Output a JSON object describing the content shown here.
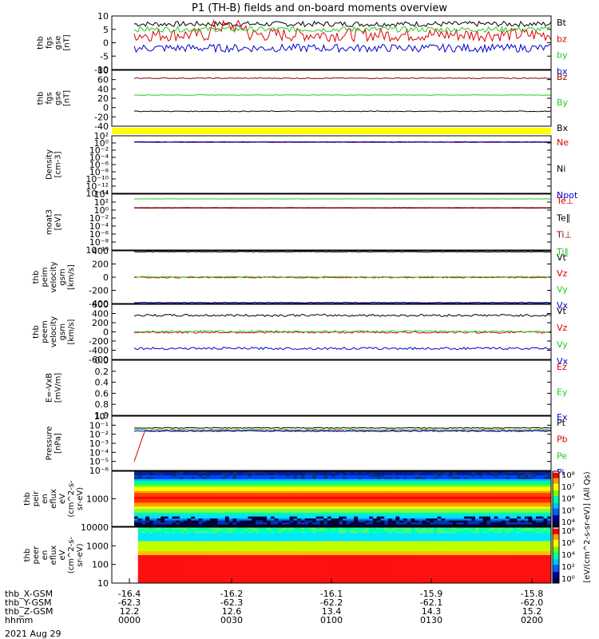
{
  "title": "P1  (TH-B) fields and on-board moments overview",
  "date_label": "2021 Aug 29",
  "colors": {
    "black": "#000000",
    "red": "#dd0000",
    "green": "#22cc22",
    "blue": "#0000cc",
    "darkred": "#880000",
    "yellow": "#ffff00",
    "teal": "#006060"
  },
  "chart_data": [
    {
      "type": "line",
      "ylabel": [
        "thb",
        "fgs",
        "gse",
        "[nT]"
      ],
      "ylim": [
        -10,
        10
      ],
      "ticks": [
        10,
        5,
        0,
        -5,
        -10
      ],
      "series": [
        {
          "name": "Bt",
          "color": "black",
          "base": 7,
          "noise": 1.0
        },
        {
          "name": "bz",
          "color": "red",
          "base": 3,
          "noise": 2.5
        },
        {
          "name": "by",
          "color": "green",
          "base": 5,
          "noise": 1.0
        },
        {
          "name": "bx",
          "color": "blue",
          "base": -2,
          "noise": 1.5
        }
      ]
    },
    {
      "type": "line",
      "ylabel": [
        "thb",
        "fgs",
        "gse",
        "[nT]"
      ],
      "ylim": [
        -40,
        80
      ],
      "ticks": [
        80,
        60,
        40,
        20,
        0,
        -20,
        -40
      ],
      "series": [
        {
          "name": "Bz",
          "color": "darkred",
          "base": 63,
          "noise": 1.0
        },
        {
          "name": "By",
          "color": "green",
          "base": 27,
          "noise": 0.6
        },
        {
          "name": "Bx",
          "color": "black",
          "base": -8,
          "noise": 0.8
        }
      ]
    },
    {
      "type": "line",
      "ylabel": [
        "Density",
        "[cm-3]"
      ],
      "ylim": [
        -14,
        2
      ],
      "log": true,
      "ticks": [
        "10²",
        "10⁰",
        "10⁻²",
        "10⁻⁴",
        "10⁻⁶",
        "10⁻⁸",
        "10⁻¹⁰",
        "10⁻¹²",
        "10⁻¹⁴"
      ],
      "series": [
        {
          "name": "Ne",
          "color": "red",
          "base": 0.2,
          "noise": 0.05
        },
        {
          "name": "Ni",
          "color": "black",
          "base": 0.25,
          "noise": 0.05
        },
        {
          "name": "Npot",
          "color": "blue",
          "base": 0.3,
          "noise": 0.05
        }
      ]
    },
    {
      "type": "line",
      "ylabel": [
        "moat3",
        "[eV]"
      ],
      "ylim": [
        -10,
        4
      ],
      "log": true,
      "ticks": [
        "10⁴",
        "10²",
        "10⁰",
        "10⁻²",
        "10⁻⁴",
        "10⁻⁶",
        "10⁻⁸",
        "10⁻¹⁰"
      ],
      "series": [
        {
          "name": "Te⊥",
          "color": "red",
          "base": 0.5,
          "noise": 0.03
        },
        {
          "name": "Te∥",
          "color": "black",
          "base": 0.55,
          "noise": 0.03
        },
        {
          "name": "Ti⊥",
          "color": "darkred",
          "base": 0.6,
          "noise": 0.03
        },
        {
          "name": "Ti∥",
          "color": "green",
          "base": 2.8,
          "noise": 0.02
        }
      ]
    },
    {
      "type": "line",
      "ylabel": [
        "thb",
        "peim",
        "velocity",
        "gsm",
        "[km/s]"
      ],
      "ylim": [
        -400,
        400
      ],
      "ticks": [
        400,
        200,
        0,
        -200,
        -400
      ],
      "series": [
        {
          "name": "Vt",
          "color": "black",
          "base": 385,
          "noise": 5
        },
        {
          "name": "Vz",
          "color": "red",
          "base": -5,
          "noise": 8
        },
        {
          "name": "Vy",
          "color": "green",
          "base": 5,
          "noise": 8
        },
        {
          "name": "Vx",
          "color": "blue",
          "base": -385,
          "noise": 5
        }
      ]
    },
    {
      "type": "line",
      "ylabel": [
        "thb",
        "peem",
        "velocity",
        "gsm",
        "[km/s]"
      ],
      "ylim": [
        -600,
        600
      ],
      "ticks": [
        600,
        400,
        200,
        0,
        -200,
        -400,
        -600
      ],
      "series": [
        {
          "name": "Vt",
          "color": "black",
          "base": 360,
          "noise": 25
        },
        {
          "name": "Vz",
          "color": "red",
          "base": -10,
          "noise": 20
        },
        {
          "name": "Vy",
          "color": "green",
          "base": 10,
          "noise": 20
        },
        {
          "name": "Vx",
          "color": "blue",
          "base": -360,
          "noise": 25
        }
      ]
    },
    {
      "type": "line",
      "ylabel": [
        "E=-VxB",
        "[mV/m]"
      ],
      "ylim": [
        0,
        1
      ],
      "ticks": [
        "0.0",
        "0.2",
        "0.4",
        "0.6",
        "0.8",
        "1.0"
      ],
      "series": [
        {
          "name": "Ez",
          "color": "red"
        },
        {
          "name": "Ey",
          "color": "green"
        },
        {
          "name": "Ex",
          "color": "blue"
        }
      ]
    },
    {
      "type": "line",
      "ylabel": [
        "Pressure",
        "[nPa]"
      ],
      "ylim": [
        -6,
        0
      ],
      "log": true,
      "ticks": [
        "10⁰",
        "10⁻¹",
        "10⁻²",
        "10⁻³",
        "10⁻⁴",
        "10⁻⁵",
        "10⁻⁶"
      ],
      "series": [
        {
          "name": "Pt",
          "color": "black",
          "base": -1.3,
          "noise": 0.05
        },
        {
          "name": "Pb",
          "color": "red",
          "base": -1.6,
          "noise": 0.12
        },
        {
          "name": "Pe",
          "color": "green",
          "base": -1.5,
          "noise": 0.06
        },
        {
          "name": "Pi",
          "color": "blue",
          "base": -1.65,
          "noise": 0.06
        }
      ]
    },
    {
      "type": "heatmap",
      "ylabel": [
        "thb",
        "peir",
        "en",
        "eflux",
        "eV",
        "(cm^2-s-",
        "sr-eV)"
      ],
      "ticks": [
        "1000"
      ]
    },
    {
      "type": "heatmap",
      "ylabel": [
        "thb",
        "peer",
        "en",
        "eflux",
        "eV",
        "(cm^2-s-",
        "sr-eV)"
      ],
      "ticks": [
        "10000",
        "1000",
        "100",
        "10"
      ]
    }
  ],
  "colorbar": {
    "label": "[eV/(cm^2-s-sr-eV)]",
    "label2": "[eV/(cm^2-s-sr-eV)] (All Qs)",
    "ticks_upper": [
      "10⁸",
      "10⁷",
      "10⁶",
      "10⁵",
      "10⁴"
    ],
    "ticks_lower": [
      "10⁸",
      "10⁶",
      "10⁴",
      "10²",
      "10⁰"
    ]
  },
  "x_axis": {
    "rows": [
      {
        "label": "thb_X-GSM",
        "values": [
          "-16.4",
          "-16.2",
          "-16.1",
          "-15.9",
          "-15.8"
        ]
      },
      {
        "label": "thb_Y-GSM",
        "values": [
          "-62.3",
          "-62.3",
          "-62.2",
          "-62.1",
          "-62.0"
        ]
      },
      {
        "label": "thb_Z-GSM",
        "values": [
          "12.2",
          "12.6",
          "13.4",
          "14.3",
          "15.2"
        ]
      },
      {
        "label": "hhmm",
        "values": [
          "0000",
          "0030",
          "0100",
          "0130",
          "0200"
        ]
      }
    ]
  }
}
